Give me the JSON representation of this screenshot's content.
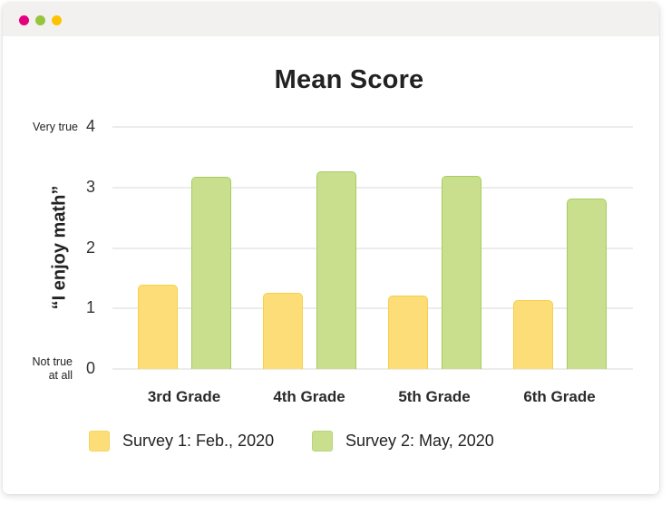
{
  "window": {
    "traffic_lights": [
      {
        "name": "close",
        "color": "#e5007e"
      },
      {
        "name": "minimize",
        "color": "#95c43d"
      },
      {
        "name": "zoom",
        "color": "#fdc300"
      }
    ]
  },
  "colors": {
    "series1": "#fddd78",
    "series1_border": "#f7cf45",
    "series2": "#c9df8e",
    "series2_border": "#a3cd5e",
    "titlebar": "#f2f1ef",
    "gridline": "#ececec"
  },
  "chart_data": {
    "type": "bar",
    "title": "Mean Score",
    "xlabel": "",
    "ylabel": "“I enjoy math”",
    "ylim": [
      0,
      4
    ],
    "yticks": [
      "0",
      "1",
      "2",
      "3",
      "4"
    ],
    "ytick_annotations": {
      "top": "Very true",
      "bottom": "Not true at all"
    },
    "grid": true,
    "legend_position": "bottom",
    "categories": [
      "3rd Grade",
      "4th Grade",
      "5th Grade",
      "6th Grade"
    ],
    "series": [
      {
        "name": "Survey 1: Feb., 2020",
        "values": [
          1.39,
          1.26,
          1.21,
          1.14
        ]
      },
      {
        "name": "Survey 2: May, 2020",
        "values": [
          3.17,
          3.26,
          3.19,
          2.81
        ]
      }
    ]
  },
  "annotations": {
    "top_line": "Very true",
    "bottom_line1": "Not true",
    "bottom_line2": "at all"
  }
}
